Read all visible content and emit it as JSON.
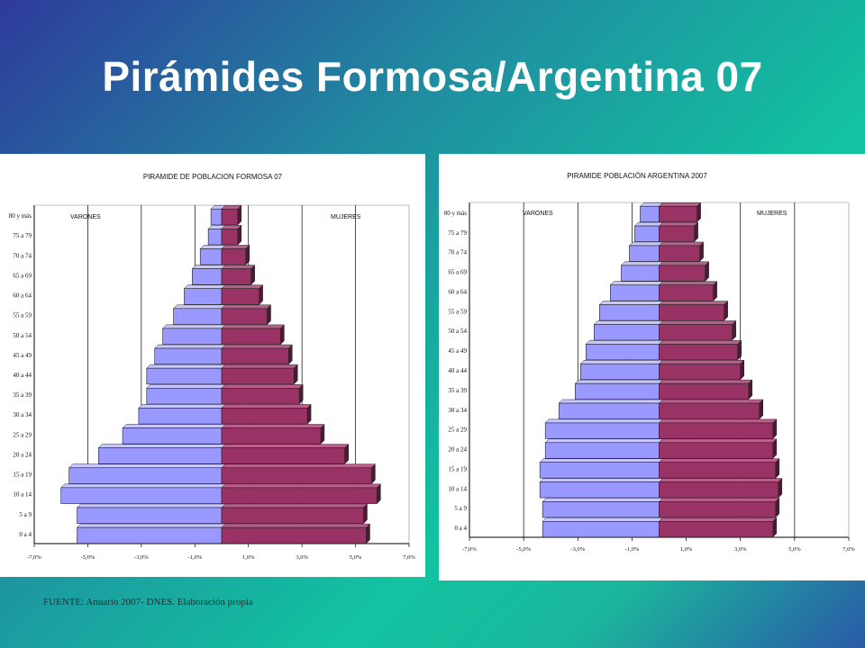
{
  "slide": {
    "title": "Pirámides Formosa/Argentina 07",
    "source": "FUENTE:  Anuario 2007- DNES.  Elaboración propia"
  },
  "colors": {
    "male": "#9999ff",
    "male_side": "#3a3a99",
    "female": "#993366",
    "female_side": "#4d1a33"
  },
  "chart_data": [
    {
      "type": "bar",
      "title": "PIRAMIDE DE POBLACION FORMOSA 07",
      "male_label": "VARONES",
      "female_label": "MUJERES",
      "xlim": [
        -7.0,
        7.0
      ],
      "x_ticks": [
        "-7,0%",
        "-5,0%",
        "-3,0%",
        "-1,0%",
        "1,0%",
        "3,0%",
        "5,0%",
        "7,0%"
      ],
      "categories": [
        "80 y más",
        "75 a 79",
        "70 a 74",
        "65 a 69",
        "60 a 64",
        "55 a 59",
        "50 a 54",
        "45 a 49",
        "40 a 44",
        "35 a 39",
        "30 a 34",
        "25 a 29",
        "20 a 24",
        "15 a 19",
        "10 a 14",
        "5 a 9",
        "0 a 4"
      ],
      "series": [
        {
          "name": "VARONES",
          "values": [
            0.4,
            0.5,
            0.8,
            1.1,
            1.4,
            1.8,
            2.2,
            2.5,
            2.8,
            2.8,
            3.1,
            3.7,
            4.6,
            5.7,
            6.0,
            5.4,
            5.4
          ]
        },
        {
          "name": "MUJERES",
          "values": [
            0.6,
            0.6,
            0.9,
            1.1,
            1.4,
            1.7,
            2.2,
            2.5,
            2.7,
            2.9,
            3.2,
            3.7,
            4.6,
            5.6,
            5.8,
            5.3,
            5.4
          ]
        }
      ]
    },
    {
      "type": "bar",
      "title": "PIRAMIDE POBLACIÓN ARGENTINA 2007",
      "male_label": "VARONES",
      "female_label": "MUJERES",
      "xlim": [
        -7.0,
        7.0
      ],
      "x_ticks": [
        "-7,0%",
        "-5,0%",
        "-3,0%",
        "-1,0%",
        "1,0%",
        "3,0%",
        "5,0%",
        "7,0%"
      ],
      "categories": [
        "80 y más",
        "75 a 79",
        "70 a 74",
        "65 a 69",
        "60 a 64",
        "55 a 59",
        "50 a 54",
        "45 a 49",
        "40 a 44",
        "35 a 39",
        "30 a 34",
        "25 a 29",
        "20 a 24",
        "15 a 19",
        "10 a 14",
        "5 a 9",
        "0 a 4"
      ],
      "series": [
        {
          "name": "VARONES",
          "values": [
            0.7,
            0.9,
            1.1,
            1.4,
            1.8,
            2.2,
            2.4,
            2.7,
            2.9,
            3.1,
            3.7,
            4.2,
            4.2,
            4.4,
            4.4,
            4.3,
            4.3
          ]
        },
        {
          "name": "MUJERES",
          "values": [
            1.4,
            1.3,
            1.5,
            1.7,
            2.0,
            2.4,
            2.7,
            2.9,
            3.0,
            3.3,
            3.7,
            4.2,
            4.2,
            4.3,
            4.4,
            4.3,
            4.2
          ]
        }
      ]
    }
  ]
}
